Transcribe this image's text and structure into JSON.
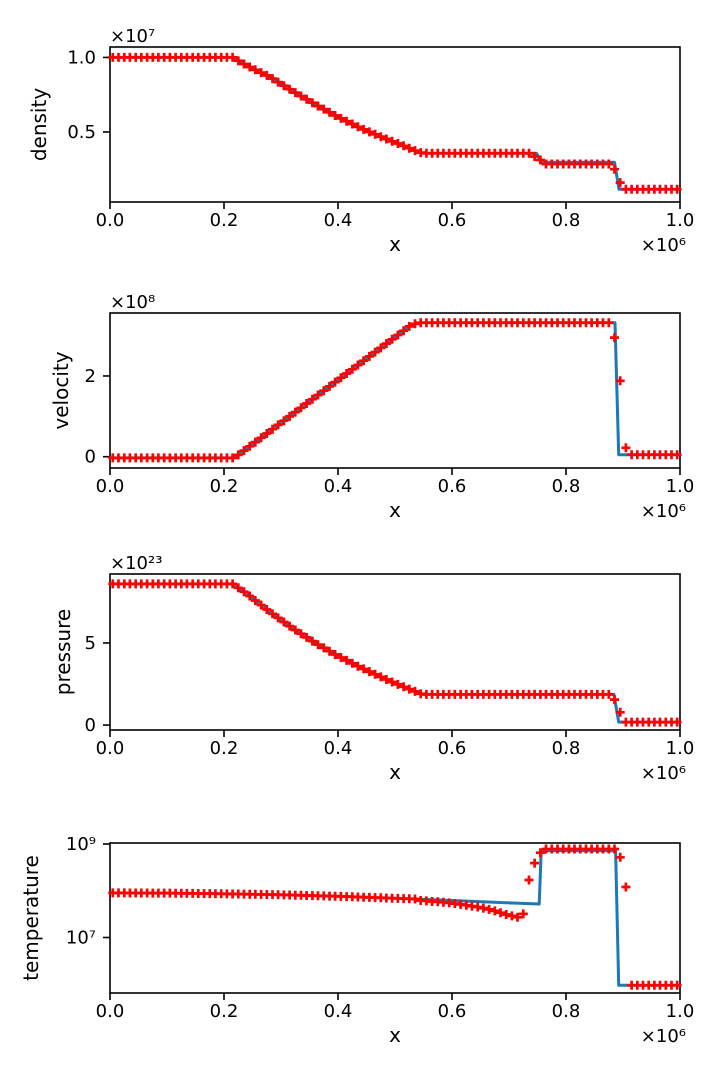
{
  "style": {
    "background": "#ffffff",
    "line_color": "#1f77b4",
    "marker_color": "#ff0000",
    "axis_color": "#000000",
    "text_color": "#000000"
  },
  "chart_data": [
    {
      "name": "density",
      "type": "line",
      "title": "",
      "xlabel": "x",
      "ylabel": "density",
      "x_offset_label": "×10⁶",
      "y_offset_label": "×10⁷",
      "x_unit_multiplier": 1000000.0,
      "y_unit_multiplier": 10000000.0,
      "yscale": "linear",
      "xlim": [
        0,
        1
      ],
      "ylim": [
        0.03,
        1.07
      ],
      "grid": false,
      "legend": "none",
      "x_ticks": [
        {
          "v": 0,
          "label": "0.0"
        },
        {
          "v": 0.2,
          "label": "0.2"
        },
        {
          "v": 0.4,
          "label": "0.4"
        },
        {
          "v": 0.6,
          "label": "0.6"
        },
        {
          "v": 0.8,
          "label": "0.8"
        },
        {
          "v": 1,
          "label": "1.0"
        }
      ],
      "y_ticks": [
        {
          "v": 0.5,
          "label": "0.5"
        },
        {
          "v": 1.0,
          "label": "1.0"
        }
      ],
      "line": {
        "x": [
          0,
          0.215,
          0.24,
          0.28,
          0.32,
          0.36,
          0.4,
          0.44,
          0.48,
          0.51,
          0.535,
          0.548,
          0.748,
          0.757,
          0.885,
          0.893,
          1.0
        ],
        "y": [
          1.0,
          1.0,
          0.945,
          0.87,
          0.775,
          0.685,
          0.6,
          0.525,
          0.46,
          0.415,
          0.375,
          0.357,
          0.357,
          0.297,
          0.297,
          0.115,
          0.115
        ]
      },
      "markers": {
        "shape": "plus",
        "x_start": 0.005,
        "x_step": 0.01,
        "x_end": 0.995,
        "follows_line": true,
        "overrides": [
          [
            0.745,
            0.335
          ],
          [
            0.755,
            0.312
          ],
          [
            0.765,
            0.285
          ],
          [
            0.775,
            0.285
          ],
          [
            0.785,
            0.285
          ],
          [
            0.795,
            0.285
          ],
          [
            0.805,
            0.285
          ],
          [
            0.815,
            0.285
          ],
          [
            0.825,
            0.285
          ],
          [
            0.835,
            0.285
          ],
          [
            0.845,
            0.285
          ],
          [
            0.855,
            0.285
          ],
          [
            0.865,
            0.285
          ],
          [
            0.875,
            0.285
          ],
          [
            0.885,
            0.25
          ],
          [
            0.895,
            0.16
          ]
        ]
      }
    },
    {
      "name": "velocity",
      "type": "line",
      "title": "",
      "xlabel": "x",
      "ylabel": "velocity",
      "x_offset_label": "×10⁶",
      "y_offset_label": "×10⁸",
      "x_unit_multiplier": 1000000.0,
      "y_unit_multiplier": 100000000.0,
      "yscale": "linear",
      "xlim": [
        0,
        1
      ],
      "ylim": [
        -0.28,
        3.56
      ],
      "grid": false,
      "legend": "none",
      "x_ticks": [
        {
          "v": 0,
          "label": "0.0"
        },
        {
          "v": 0.2,
          "label": "0.2"
        },
        {
          "v": 0.4,
          "label": "0.4"
        },
        {
          "v": 0.6,
          "label": "0.6"
        },
        {
          "v": 0.8,
          "label": "0.8"
        },
        {
          "v": 1,
          "label": "1.0"
        }
      ],
      "y_ticks": [
        {
          "v": 0,
          "label": "0"
        },
        {
          "v": 2,
          "label": "2"
        }
      ],
      "line": {
        "x": [
          0,
          0.218,
          0.53,
          0.545,
          0.886,
          0.8925,
          1.0
        ],
        "y": [
          -0.03,
          -0.03,
          3.28,
          3.32,
          3.32,
          0.05,
          0.05
        ]
      },
      "markers": {
        "shape": "plus",
        "x_start": 0.005,
        "x_step": 0.01,
        "x_end": 0.995,
        "follows_line": true,
        "overrides": [
          [
            0.885,
            2.95
          ],
          [
            0.895,
            1.88
          ],
          [
            0.905,
            0.22
          ]
        ]
      }
    },
    {
      "name": "pressure",
      "type": "line",
      "title": "",
      "xlabel": "x",
      "ylabel": "pressure",
      "x_offset_label": "×10⁶",
      "y_offset_label": "×10²³",
      "x_unit_multiplier": 1000000.0,
      "y_unit_multiplier": 1e+23,
      "yscale": "linear",
      "xlim": [
        0,
        1
      ],
      "ylim": [
        -0.3,
        9.2
      ],
      "grid": false,
      "legend": "none",
      "x_ticks": [
        {
          "v": 0,
          "label": "0.0"
        },
        {
          "v": 0.2,
          "label": "0.2"
        },
        {
          "v": 0.4,
          "label": "0.4"
        },
        {
          "v": 0.6,
          "label": "0.6"
        },
        {
          "v": 0.8,
          "label": "0.8"
        },
        {
          "v": 1,
          "label": "1.0"
        }
      ],
      "y_ticks": [
        {
          "v": 0,
          "label": "0"
        },
        {
          "v": 5,
          "label": "5"
        }
      ],
      "line": {
        "x": [
          0,
          0.215,
          0.24,
          0.28,
          0.32,
          0.36,
          0.4,
          0.44,
          0.48,
          0.51,
          0.535,
          0.548,
          0.884,
          0.8925,
          1.0
        ],
        "y": [
          8.6,
          8.6,
          8.0,
          6.9,
          5.9,
          5.0,
          4.2,
          3.5,
          2.85,
          2.4,
          2.05,
          1.87,
          1.87,
          0.18,
          0.18
        ]
      },
      "markers": {
        "shape": "plus",
        "x_start": 0.005,
        "x_step": 0.01,
        "x_end": 0.995,
        "follows_line": true,
        "overrides": [
          [
            0.885,
            1.55
          ],
          [
            0.895,
            0.78
          ]
        ]
      }
    },
    {
      "name": "temperature",
      "type": "line",
      "title": "",
      "xlabel": "x",
      "ylabel": "temperature",
      "x_offset_label": "×10⁶",
      "y_offset_label": "",
      "x_unit_multiplier": 1000000.0,
      "y_unit_multiplier": 1,
      "yscale": "log",
      "xlim": [
        0,
        1
      ],
      "ylim": [
        650000.0,
        1050000000.0
      ],
      "grid": false,
      "legend": "none",
      "x_ticks": [
        {
          "v": 0,
          "label": "0.0"
        },
        {
          "v": 0.2,
          "label": "0.2"
        },
        {
          "v": 0.4,
          "label": "0.4"
        },
        {
          "v": 0.6,
          "label": "0.6"
        },
        {
          "v": 0.8,
          "label": "0.8"
        },
        {
          "v": 1,
          "label": "1.0"
        }
      ],
      "y_ticks": [
        {
          "v": 10000000.0,
          "label": "10⁷"
        },
        {
          "v": 1000000000.0,
          "label": "10⁹"
        }
      ],
      "line": {
        "x": [
          0,
          0.1,
          0.2,
          0.3,
          0.4,
          0.5,
          0.6,
          0.7,
          0.753,
          0.7565,
          0.887,
          0.8925,
          1.0
        ],
        "y": [
          90000000.0,
          89000000.0,
          86000000.0,
          82000000.0,
          76000000.0,
          69000000.0,
          62000000.0,
          55000000.0,
          52000000.0,
          720000000.0,
          720000000.0,
          950000.0,
          950000.0
        ]
      },
      "markers": {
        "shape": "plus",
        "x_start": 0.005,
        "x_step": 0.01,
        "x_end": 0.995,
        "follows_line": true,
        "overrides": [
          [
            0.545,
            62000000.0
          ],
          [
            0.555,
            60500000.0
          ],
          [
            0.565,
            59000000.0
          ],
          [
            0.575,
            58000000.0
          ],
          [
            0.585,
            56500000.0
          ],
          [
            0.595,
            55000000.0
          ],
          [
            0.605,
            53000000.0
          ],
          [
            0.615,
            51000000.0
          ],
          [
            0.625,
            49000000.0
          ],
          [
            0.635,
            47000000.0
          ],
          [
            0.645,
            45000000.0
          ],
          [
            0.655,
            42500000.0
          ],
          [
            0.665,
            40000000.0
          ],
          [
            0.675,
            37000000.0
          ],
          [
            0.685,
            34000000.0
          ],
          [
            0.695,
            31000000.0
          ],
          [
            0.705,
            29000000.0
          ],
          [
            0.715,
            27000000.0
          ],
          [
            0.725,
            32000000.0
          ],
          [
            0.735,
            170000000.0
          ],
          [
            0.745,
            390000000.0
          ],
          [
            0.755,
            650000000.0
          ],
          [
            0.765,
            780000000.0
          ],
          [
            0.775,
            780000000.0
          ],
          [
            0.785,
            780000000.0
          ],
          [
            0.795,
            780000000.0
          ],
          [
            0.805,
            780000000.0
          ],
          [
            0.815,
            780000000.0
          ],
          [
            0.825,
            780000000.0
          ],
          [
            0.835,
            780000000.0
          ],
          [
            0.845,
            780000000.0
          ],
          [
            0.855,
            780000000.0
          ],
          [
            0.865,
            780000000.0
          ],
          [
            0.875,
            780000000.0
          ],
          [
            0.885,
            780000000.0
          ],
          [
            0.895,
            520000000.0
          ],
          [
            0.905,
            120000000.0
          ]
        ]
      }
    }
  ]
}
